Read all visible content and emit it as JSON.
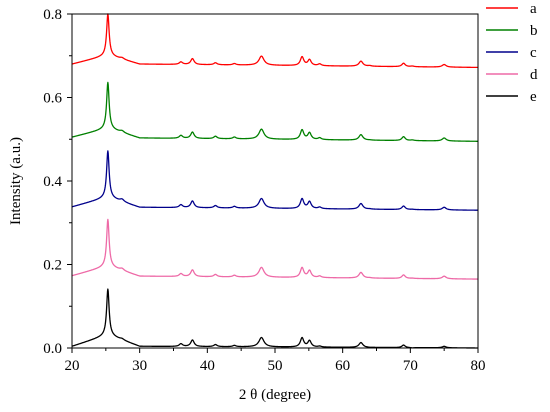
{
  "chart_data": {
    "type": "line",
    "title": "",
    "xlabel": "2 θ (degree)",
    "ylabel": "Intensity (a.u.)",
    "xlim": [
      20,
      80
    ],
    "ylim": [
      0,
      0.8
    ],
    "x_ticks": [
      20,
      30,
      40,
      50,
      60,
      70,
      80
    ],
    "y_ticks": [
      0.0,
      0.2,
      0.4,
      0.6,
      0.8
    ],
    "x_tick_labels": [
      "20",
      "30",
      "40",
      "50",
      "60",
      "70",
      "80"
    ],
    "y_tick_labels": [
      "0.0",
      "0.2",
      "0.4",
      "0.6",
      "0.8"
    ],
    "grid": false,
    "legend_position": "top-right, outside",
    "peaks_2theta": [
      25.3,
      27.4,
      36.1,
      37.8,
      41.2,
      44.0,
      48.0,
      54.0,
      55.1,
      56.6,
      62.7,
      64.0,
      69.0,
      70.3,
      75.0
    ],
    "series": [
      {
        "name": "a",
        "color": "#ff0000",
        "x": [
          20,
          25,
          25.3,
          25.6,
          27.4,
          30,
          36.1,
          37.8,
          41.2,
          44.0,
          48.0,
          54.0,
          55.1,
          56.6,
          62.7,
          64.0,
          69.0,
          70.3,
          75.0,
          80
        ],
        "y": [
          0.68,
          0.7,
          0.8,
          0.7,
          0.695,
          0.68,
          0.685,
          0.693,
          0.683,
          0.681,
          0.699,
          0.697,
          0.69,
          0.68,
          0.687,
          0.676,
          0.682,
          0.675,
          0.679,
          0.672
        ]
      },
      {
        "name": "b",
        "color": "#008000",
        "x": [
          20,
          25,
          25.3,
          25.6,
          27.4,
          30,
          36.1,
          37.8,
          41.2,
          44.0,
          48.0,
          54.0,
          55.1,
          56.6,
          62.7,
          64.0,
          69.0,
          70.3,
          75.0,
          80
        ],
        "y": [
          0.505,
          0.525,
          0.636,
          0.525,
          0.52,
          0.503,
          0.509,
          0.517,
          0.507,
          0.505,
          0.524,
          0.522,
          0.515,
          0.503,
          0.511,
          0.498,
          0.506,
          0.498,
          0.503,
          0.495
        ]
      },
      {
        "name": "c",
        "color": "#00008b",
        "x": [
          20,
          25,
          25.3,
          25.6,
          27.4,
          30,
          36.1,
          37.8,
          41.2,
          44.0,
          48.0,
          54.0,
          55.1,
          56.6,
          62.7,
          64.0,
          69.0,
          70.3,
          75.0,
          80
        ],
        "y": [
          0.338,
          0.36,
          0.472,
          0.36,
          0.356,
          0.337,
          0.343,
          0.352,
          0.341,
          0.339,
          0.358,
          0.357,
          0.35,
          0.337,
          0.346,
          0.333,
          0.34,
          0.332,
          0.337,
          0.33
        ]
      },
      {
        "name": "d",
        "color": "#ee6aa7",
        "x": [
          20,
          25,
          25.3,
          25.6,
          27.4,
          30,
          36.1,
          37.8,
          41.2,
          44.0,
          48.0,
          54.0,
          55.1,
          56.6,
          62.7,
          64.0,
          69.0,
          70.3,
          75.0,
          80
        ],
        "y": [
          0.173,
          0.195,
          0.308,
          0.195,
          0.19,
          0.172,
          0.178,
          0.187,
          0.176,
          0.174,
          0.193,
          0.192,
          0.185,
          0.172,
          0.181,
          0.168,
          0.175,
          0.167,
          0.172,
          0.165
        ]
      },
      {
        "name": "e",
        "color": "#000000",
        "x": [
          20,
          25,
          25.3,
          25.6,
          27.4,
          30,
          36.1,
          37.8,
          41.2,
          44.0,
          48.0,
          54.0,
          55.1,
          56.6,
          62.7,
          64.0,
          69.0,
          70.3,
          75.0,
          80
        ],
        "y": [
          0.004,
          0.03,
          0.141,
          0.03,
          0.022,
          0.004,
          0.01,
          0.019,
          0.008,
          0.006,
          0.025,
          0.024,
          0.017,
          0.004,
          0.013,
          0.001,
          0.007,
          0.0,
          0.004,
          0.0
        ]
      }
    ]
  }
}
